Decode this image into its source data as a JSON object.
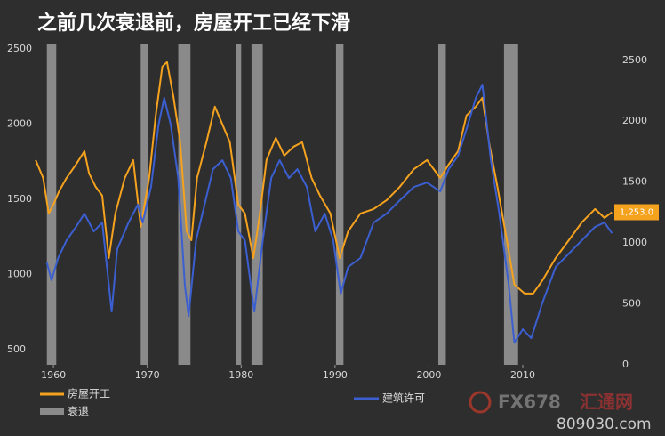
{
  "chart_data": {
    "type": "line",
    "title": "之前几次衰退前，房屋开工已经下滑",
    "xlim": [
      1958,
      2019.8
    ],
    "xticks": [
      1960,
      1970,
      1980,
      1990,
      2000,
      2010
    ],
    "ylim": [
      400,
      2530
    ],
    "yticks": [
      500,
      1000,
      1500,
      2000,
      2500
    ],
    "y2lim": [
      0,
      2630
    ],
    "y2ticks": [
      0,
      500,
      1000,
      1500,
      2000,
      2500
    ],
    "grid": false,
    "recession_name": "衰退",
    "recession_color": "#8a8a8a",
    "recessions": [
      [
        1959.3,
        1960.3
      ],
      [
        1969.3,
        1970.1
      ],
      [
        1973.3,
        1974.6
      ],
      [
        1979.5,
        1980.0
      ],
      [
        1981.1,
        1982.3
      ],
      [
        1990.1,
        1990.9
      ],
      [
        2001.0,
        2001.8
      ],
      [
        2008.0,
        2009.5
      ]
    ],
    "series": [
      {
        "name": "房屋开工",
        "color": "#f5a21f",
        "axis": "y2",
        "x": [
          1958.1,
          1958.9,
          1959.5,
          1960,
          1960.6,
          1961.4,
          1962.4,
          1963.3,
          1963.8,
          1964.5,
          1965.2,
          1965.9,
          1966.6,
          1967.6,
          1968.5,
          1969.3,
          1970.2,
          1970.9,
          1971.6,
          1972.1,
          1972.8,
          1973.5,
          1974.2,
          1974.7,
          1975.3,
          1976.3,
          1977.2,
          1978,
          1978.8,
          1979.7,
          1980.4,
          1981.3,
          1982,
          1982.7,
          1983.7,
          1984.6,
          1985.6,
          1986.5,
          1987.5,
          1988.4,
          1989.5,
          1990.5,
          1991.4,
          1992.7,
          1994.1,
          1995.5,
          1996.9,
          1998.4,
          1999.8,
          2001.2,
          2002.1,
          2003.1,
          2004,
          2005,
          2005.7,
          2006.4,
          2007.3,
          2008.3,
          2009.1,
          2010.2,
          2011.1,
          2012.1,
          2013.5,
          2014.9,
          2016.3,
          2017.7,
          2018.7,
          2019.5
        ],
        "values": [
          1681,
          1535,
          1243,
          1316,
          1425,
          1535,
          1645,
          1754,
          1572,
          1462,
          1389,
          877,
          1243,
          1535,
          1681,
          1133,
          1535,
          2047,
          2449,
          2485,
          2193,
          1827,
          1096,
          1023,
          1535,
          1827,
          2120,
          1974,
          1827,
          1316,
          1243,
          877,
          1243,
          1681,
          1864,
          1718,
          1791,
          1827,
          1535,
          1389,
          1243,
          877,
          1096,
          1243,
          1279,
          1352,
          1462,
          1608,
          1681,
          1535,
          1645,
          1754,
          2047,
          2120,
          2193,
          1827,
          1462,
          1023,
          658,
          585,
          585,
          694,
          877,
          1023,
          1170,
          1279,
          1206,
          1253
        ]
      },
      {
        "name": "建筑许可",
        "color": "#3b5fd0",
        "x": [
          1959.3,
          1959.8,
          1960.5,
          1961.4,
          1962.4,
          1963.3,
          1964.3,
          1965.2,
          1966.2,
          1966.8,
          1968,
          1969,
          1969.5,
          1970.4,
          1971.2,
          1971.8,
          1972.5,
          1973.3,
          1974,
          1974.4,
          1975.2,
          1976.1,
          1977,
          1978,
          1978.9,
          1979.7,
          1980.4,
          1981.4,
          1982.3,
          1983.2,
          1984.1,
          1985.1,
          1986,
          1987,
          1987.9,
          1988.9,
          1989.8,
          1990.6,
          1991.4,
          1992.7,
          1994.1,
          1995.5,
          1996.9,
          1998.4,
          1999.8,
          2001.2,
          2002.1,
          2003.1,
          2004,
          2005,
          2005.7,
          2006.6,
          2007.5,
          2008.5,
          2009.1,
          2010,
          2010.9,
          2012.1,
          2013.5,
          2014.9,
          2016.3,
          2017.7,
          2018.7,
          2019.5
        ],
        "values": [
          1080,
          962,
          1110,
          1228,
          1317,
          1405,
          1287,
          1346,
          754,
          1169,
          1346,
          1465,
          1346,
          1583,
          1997,
          2175,
          1997,
          1642,
          932,
          725,
          1228,
          1465,
          1701,
          1760,
          1642,
          1287,
          1228,
          754,
          1228,
          1642,
          1760,
          1642,
          1701,
          1583,
          1287,
          1405,
          1228,
          873,
          1050,
          1110,
          1346,
          1405,
          1494,
          1583,
          1612,
          1553,
          1701,
          1790,
          1967,
          2175,
          2263,
          1760,
          1405,
          932,
          547,
          636,
          577,
          814,
          1050,
          1139,
          1228,
          1317,
          1346,
          1275
        ]
      }
    ],
    "end_label": {
      "value": 1253,
      "label": "1,253.0",
      "axis": "y2"
    },
    "watermark": {
      "brand": "FX678",
      "site_name": "汇通网",
      "url": "809030.com"
    }
  }
}
